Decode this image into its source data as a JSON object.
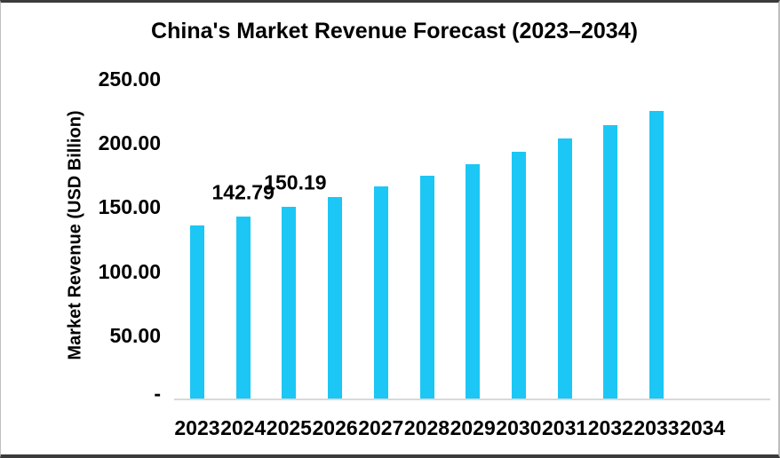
{
  "chart_data": {
    "type": "bar",
    "title": "China's Market Revenue Forecast (2023–2034)",
    "ylabel": "Market Revenue (USD Billion)",
    "xlabel": "",
    "categories": [
      "2023",
      "2024",
      "2025",
      "2026",
      "2027",
      "2028",
      "2029",
      "2030",
      "2031",
      "2032",
      "2033",
      "2034"
    ],
    "values": [
      135.76,
      142.79,
      150.19,
      157.97,
      166.15,
      174.76,
      183.81,
      193.33,
      203.34,
      213.88,
      224.96,
      null
    ],
    "data_labels": [
      {
        "index": 1,
        "text": "142.79"
      },
      {
        "index": 2,
        "text": "150.19"
      }
    ],
    "y_ticks": [
      {
        "value": 250,
        "label": "250.00"
      },
      {
        "value": 200,
        "label": "200.00"
      },
      {
        "value": 150,
        "label": "150.00"
      },
      {
        "value": 100,
        "label": "100.00"
      },
      {
        "value": 50,
        "label": "50.00"
      },
      {
        "value": 0,
        "label": "-"
      }
    ],
    "ylim": [
      0,
      250
    ],
    "grid": false,
    "legend": false,
    "bar_color": "#1cc7f5",
    "axis_line_color": "#d9d9d9",
    "text_color": "#000000"
  }
}
